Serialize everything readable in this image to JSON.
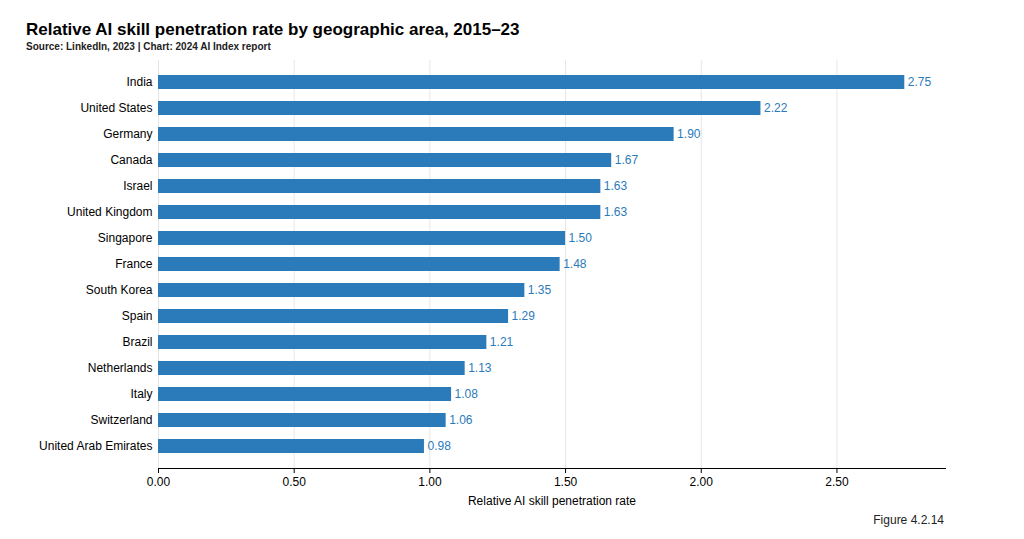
{
  "chart_data": {
    "type": "bar",
    "orientation": "horizontal",
    "title": "Relative AI skill penetration rate by geographic area, 2015–23",
    "subtitle": "Source: LinkedIn, 2023 | Chart: 2024 AI Index report",
    "caption": "Figure 4.2.14",
    "xlabel": "Relative AI skill penetration rate",
    "categories": [
      "India",
      "United States",
      "Germany",
      "Canada",
      "Israel",
      "United Kingdom",
      "Singapore",
      "France",
      "South Korea",
      "Spain",
      "Brazil",
      "Netherlands",
      "Italy",
      "Switzerland",
      "United Arab Emirates"
    ],
    "values": [
      2.75,
      2.22,
      1.9,
      1.67,
      1.63,
      1.63,
      1.5,
      1.48,
      1.35,
      1.29,
      1.21,
      1.13,
      1.08,
      1.06,
      0.98
    ],
    "value_labels": [
      "2.75",
      "2.22",
      "1.90",
      "1.67",
      "1.63",
      "1.63",
      "1.50",
      "1.48",
      "1.35",
      "1.29",
      "1.21",
      "1.13",
      "1.08",
      "1.06",
      "0.98"
    ],
    "data_labels": true,
    "color": "#2b7bba",
    "xlim": [
      0,
      2.9
    ],
    "xticks": [
      {
        "value": 0,
        "label": "0.00"
      },
      {
        "value": 0.5,
        "label": "0.50"
      },
      {
        "value": 1,
        "label": "1.00"
      },
      {
        "value": 1.5,
        "label": "1.50"
      },
      {
        "value": 2,
        "label": "2.00"
      },
      {
        "value": 2.5,
        "label": "2.50"
      }
    ],
    "grid": true
  }
}
